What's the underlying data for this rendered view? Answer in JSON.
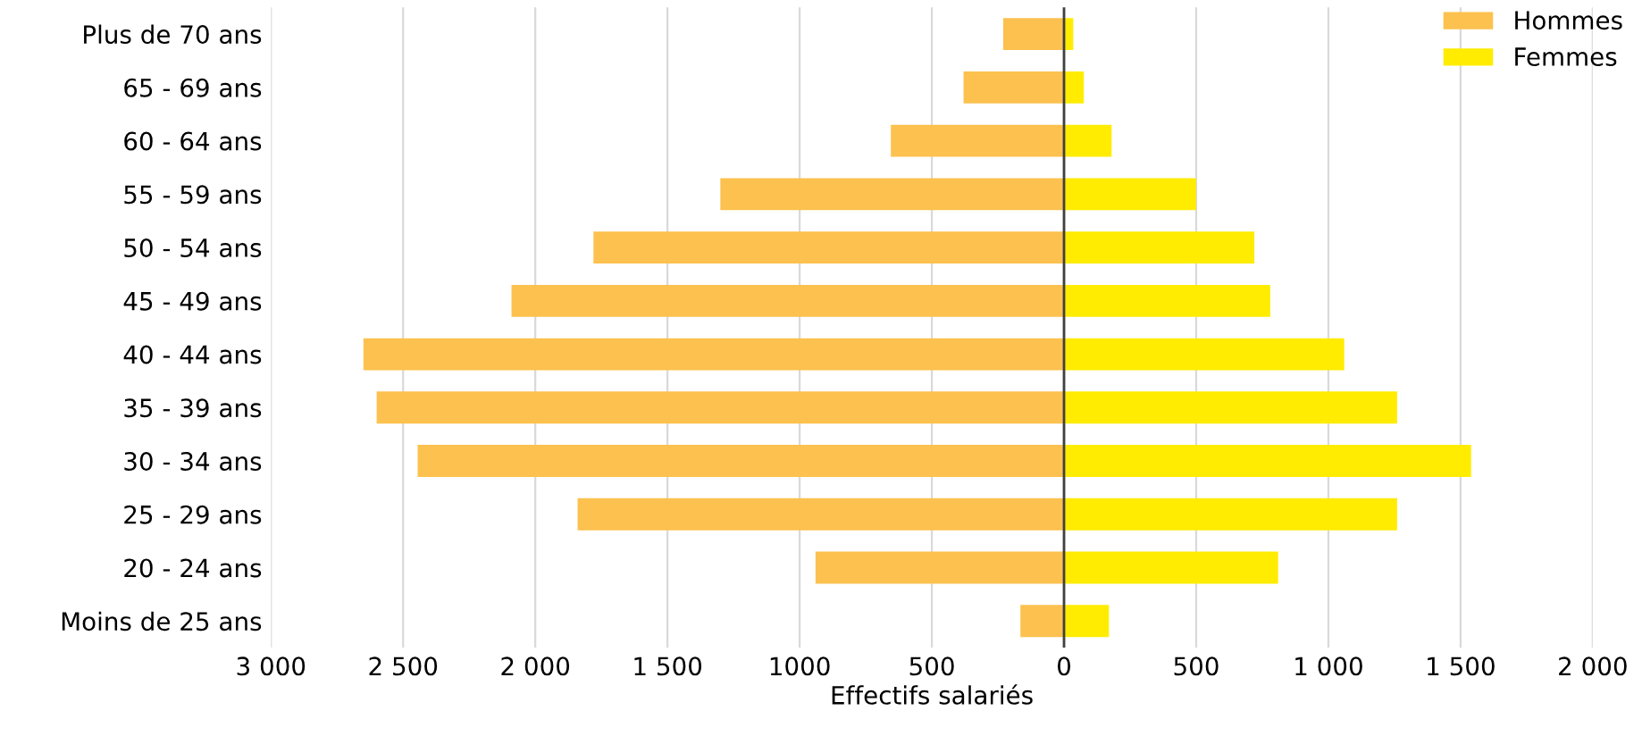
{
  "chart_data": {
    "type": "bar",
    "orientation": "horizontal",
    "xlabel": "Effectifs salariés",
    "categories": [
      "Plus de 70 ans",
      "65 - 69 ans",
      "60 - 64 ans",
      "55 - 59 ans",
      "50 - 54 ans",
      "45 - 49 ans",
      "40 - 44 ans",
      "35 - 39 ans",
      "30 - 34 ans",
      "25 - 29 ans",
      "20 - 24 ans",
      "Moins de 25 ans"
    ],
    "series": [
      {
        "name": "Hommes",
        "color": "#fcc14e",
        "values": [
          -230,
          -380,
          -655,
          -1300,
          -1780,
          -2090,
          -2650,
          -2600,
          -2445,
          -1840,
          -940,
          -165
        ]
      },
      {
        "name": "Femmes",
        "color": "#ffec00",
        "values": [
          35,
          75,
          180,
          500,
          720,
          780,
          1060,
          1260,
          1540,
          1260,
          810,
          170
        ]
      }
    ],
    "xlim": [
      -3000,
      2000
    ],
    "xticks": [
      {
        "value": -3000,
        "label": "3 000"
      },
      {
        "value": -2500,
        "label": "2 500"
      },
      {
        "value": -2000,
        "label": "2 000"
      },
      {
        "value": -1500,
        "label": "1 500"
      },
      {
        "value": -1000,
        "label": "1000"
      },
      {
        "value": -500,
        "label": "500"
      },
      0,
      500,
      {
        "value": 1000,
        "label": "1 000"
      },
      {
        "value": 1500,
        "label": "1 500"
      },
      {
        "value": 2000,
        "label": "2 000"
      }
    ],
    "ref_lines": [
      {
        "axis": "x",
        "value": 0,
        "color": "#404040"
      }
    ],
    "stacked": true,
    "grid": "x",
    "legend": "top right"
  }
}
